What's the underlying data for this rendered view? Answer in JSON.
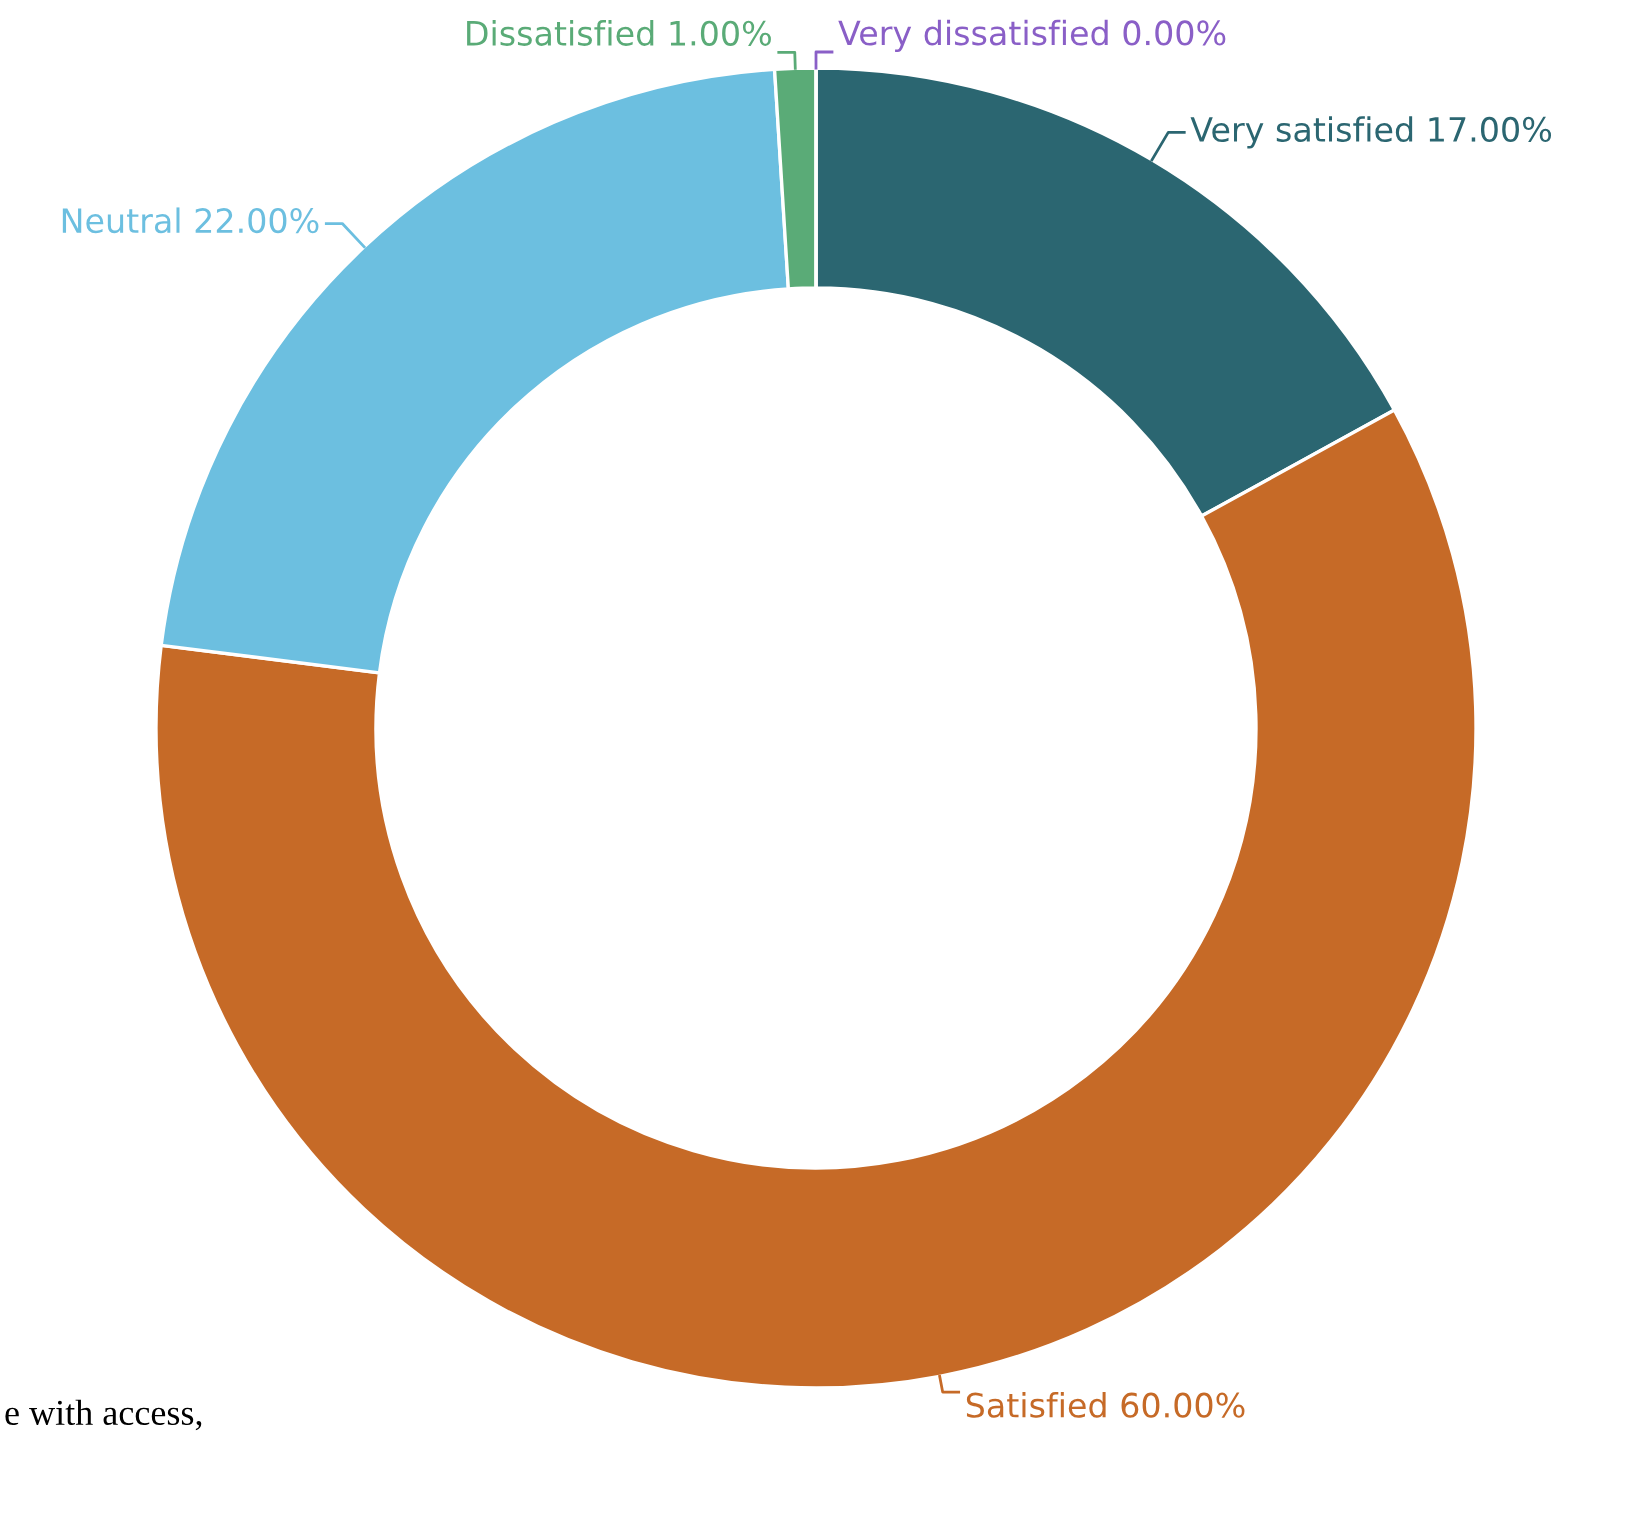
{
  "chart_data": {
    "type": "donut",
    "categories": [
      "Very satisfied",
      "Satisfied",
      "Neutral",
      "Dissatisfied",
      "Very dissatisfied"
    ],
    "values": [
      17,
      60,
      22,
      1,
      0
    ],
    "value_labels": [
      "17.00%",
      "60.00%",
      "22.00%",
      "1.00%",
      "0.00%"
    ],
    "colors": [
      "#2b6671",
      "#c66a27",
      "#6cbfe0",
      "#5aab77",
      "#8a5fc7"
    ],
    "annotations": [
      "e with access,"
    ],
    "legend": false
  }
}
